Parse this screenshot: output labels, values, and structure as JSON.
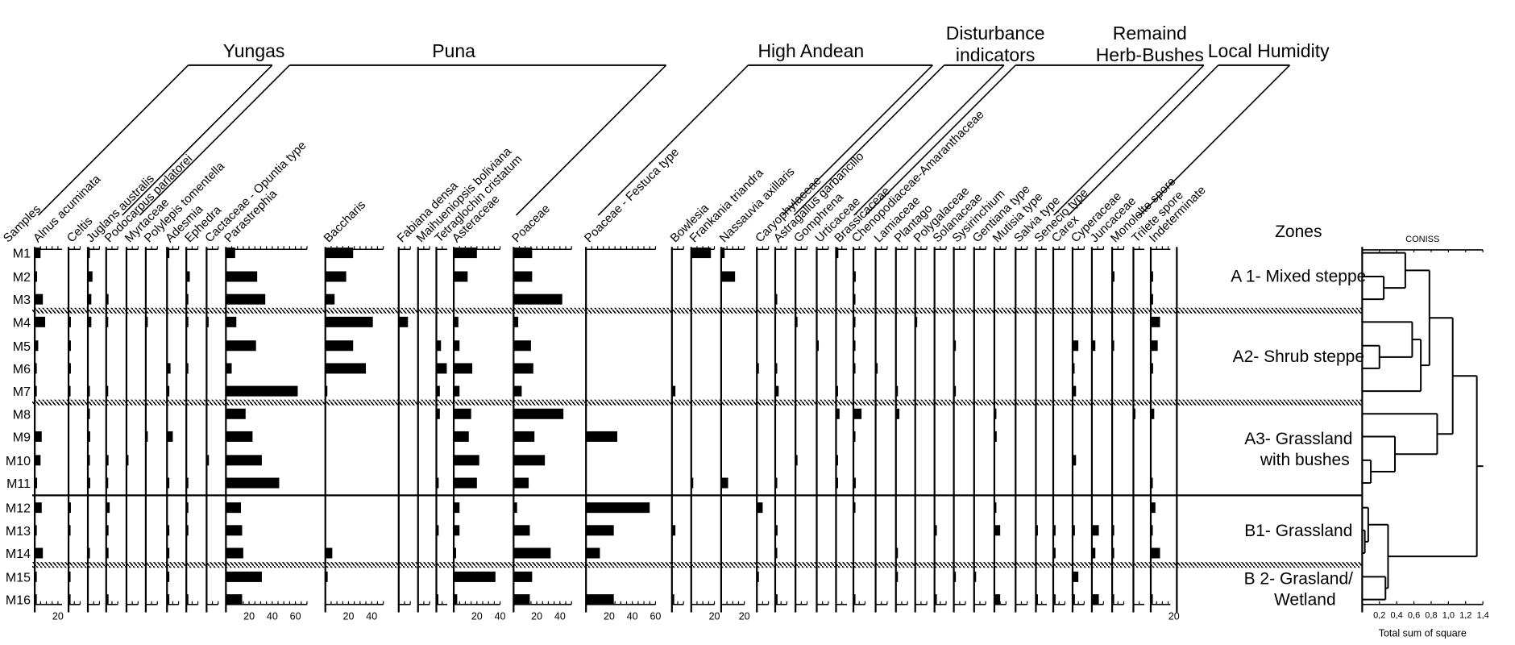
{
  "chart_data": {
    "type": "pollen-diagram",
    "title": "",
    "samples_label": "Samples",
    "samples": [
      "M1",
      "M2",
      "M3",
      "M4",
      "M5",
      "M6",
      "M7",
      "M8",
      "M9",
      "M10",
      "M11",
      "M12",
      "M13",
      "M14",
      "M15",
      "M16"
    ],
    "units": "%",
    "groups": [
      {
        "name": "Yungas",
        "taxa": [
          "Alnus acuminata",
          "Celtis",
          "Juglans australis",
          "Podocarpus parlatorei",
          "Myrtaceae",
          "Polylepis tomentella"
        ]
      },
      {
        "name": "Puna",
        "taxa": [
          "Adesmia",
          "Ephedra",
          "Cactaceae - Opuntia type",
          "Parastrephia",
          "Baccharis",
          "Fabiana densa",
          "Maihueniopsis boliviana",
          "Tetraglochin cristatum",
          "Asteraceae"
        ]
      },
      {
        "name": "High Andean",
        "taxa": [
          "Poaceae",
          "Poaceae - Festuca type",
          "Bowlesia",
          "Frankania triandra",
          "Nassauvia axillaris",
          "Caryophylaceae"
        ]
      },
      {
        "name": "Disturbance indicators",
        "taxa": [
          "Astragallus garbancillo",
          "Gomphrena",
          "Urticaceae",
          "Brassicaceae",
          "Chenopodiaceae-Amaranthaceae"
        ]
      },
      {
        "name": "Remaind Herb-Bushes",
        "taxa": [
          "Lamiaceae",
          "Plantago",
          "Polygalaceae",
          "Solanaceae",
          "Sysirinchium",
          "Gentiana type",
          "Mutisia type",
          "Salvia type",
          "Senecio type"
        ]
      },
      {
        "name": "Local Humidity",
        "taxa": [
          "Carex",
          "Cyperaceae",
          "Juncaceae",
          "Monolelte spore",
          "Trilete spore",
          "Indeterminate"
        ]
      }
    ],
    "series": [
      {
        "name": "Alnus acuminata",
        "scale_max": 30,
        "ticks": [
          "20"
        ],
        "values": [
          5,
          2,
          7,
          9,
          3,
          1,
          1,
          0,
          6,
          5,
          2,
          6,
          1,
          7,
          1,
          1
        ]
      },
      {
        "name": "Celtis",
        "scale_max": 10,
        "ticks": [],
        "values": [
          0,
          0,
          0,
          2,
          2,
          2,
          1,
          0,
          0,
          0,
          0,
          2,
          1,
          0,
          1,
          1
        ]
      },
      {
        "name": "Juglans australis",
        "scale_max": 10,
        "ticks": [],
        "values": [
          1,
          4,
          3,
          3,
          0,
          0,
          1,
          1,
          2,
          1,
          2,
          0,
          0,
          1,
          0,
          0
        ]
      },
      {
        "name": "Podocarpus parlatorei",
        "scale_max": 10,
        "ticks": [],
        "values": [
          0,
          0,
          2,
          1,
          0,
          0,
          1,
          0,
          0,
          2,
          1,
          3,
          2,
          2,
          0,
          2
        ]
      },
      {
        "name": "Myrtaceae",
        "scale_max": 10,
        "ticks": [],
        "values": [
          0,
          0,
          0,
          0,
          0,
          0,
          0,
          0,
          0,
          1,
          0,
          0,
          0,
          0,
          0,
          0
        ]
      },
      {
        "name": "Polylepis tomentella",
        "scale_max": 10,
        "ticks": [],
        "values": [
          0,
          0,
          0,
          1,
          0,
          0,
          0,
          0,
          1,
          0,
          0,
          0,
          0,
          0,
          0,
          0
        ]
      },
      {
        "name": "Adesmia",
        "scale_max": 10,
        "ticks": [],
        "values": [
          2,
          0,
          0,
          0,
          0,
          3,
          2,
          0,
          5,
          0,
          2,
          0,
          2,
          2,
          2,
          2
        ]
      },
      {
        "name": "Ephedra",
        "scale_max": 10,
        "ticks": [],
        "values": [
          0,
          3,
          1,
          1,
          0,
          1,
          0,
          0,
          0,
          0,
          1,
          1,
          1,
          0,
          0,
          1
        ]
      },
      {
        "name": "Cactaceae - Opuntia type",
        "scale_max": 10,
        "ticks": [],
        "values": [
          0,
          0,
          0,
          1,
          0,
          0,
          0,
          0,
          0,
          2,
          0,
          0,
          0,
          0,
          0,
          0
        ]
      },
      {
        "name": "Parastrephia",
        "scale_max": 70,
        "ticks": [
          "20",
          "40",
          "60"
        ],
        "values": [
          8,
          27,
          34,
          9,
          26,
          5,
          62,
          17,
          23,
          31,
          46,
          13,
          14,
          15,
          31,
          14
        ]
      },
      {
        "name": "Baccharis",
        "scale_max": 50,
        "ticks": [
          "20",
          "40"
        ],
        "values": [
          24,
          18,
          8,
          41,
          24,
          35,
          1,
          0,
          0,
          0,
          0,
          0,
          0,
          6,
          2,
          0
        ]
      },
      {
        "name": "Fabiana densa",
        "scale_max": 10,
        "ticks": [],
        "values": [
          0,
          0,
          0,
          8,
          0,
          0,
          0,
          0,
          0,
          0,
          0,
          0,
          0,
          0,
          0,
          0
        ]
      },
      {
        "name": "Maihueniopsis boliviana",
        "scale_max": 10,
        "ticks": [],
        "values": [
          0,
          0,
          0,
          0,
          0,
          0,
          0,
          0,
          0,
          0,
          0,
          0,
          0,
          0,
          0,
          0
        ]
      },
      {
        "name": "Tetraglochin cristatum",
        "scale_max": 10,
        "ticks": [],
        "values": [
          0,
          0,
          0,
          0,
          4,
          9,
          3,
          3,
          0,
          0,
          2,
          0,
          2,
          0,
          0,
          1
        ]
      },
      {
        "name": "Asteraceae",
        "scale_max": 40,
        "ticks": [
          "20",
          "40"
        ],
        "values": [
          20,
          12,
          0,
          4,
          5,
          16,
          5,
          15,
          13,
          22,
          20,
          5,
          5,
          2,
          36,
          3
        ]
      },
      {
        "name": "Poaceae",
        "scale_max": 50,
        "ticks": [
          "20",
          "40"
        ],
        "values": [
          16,
          16,
          42,
          4,
          15,
          17,
          7,
          43,
          18,
          27,
          13,
          3,
          14,
          32,
          16,
          14
        ]
      },
      {
        "name": "Poaceae - Festuca type",
        "scale_max": 60,
        "ticks": [
          "20",
          "40",
          "60"
        ],
        "values": [
          0,
          0,
          0,
          0,
          0,
          0,
          0,
          0,
          27,
          0,
          0,
          55,
          24,
          12,
          0,
          24
        ]
      },
      {
        "name": "Bowlesia",
        "scale_max": 10,
        "ticks": [],
        "values": [
          0,
          0,
          0,
          0,
          0,
          0,
          3,
          0,
          0,
          0,
          0,
          0,
          3,
          0,
          0,
          2
        ]
      },
      {
        "name": "Frankania triandra",
        "scale_max": 20,
        "ticks": [
          "20"
        ],
        "values": [
          17,
          0,
          0,
          0,
          0,
          0,
          0,
          0,
          0,
          0,
          1,
          0,
          0,
          0,
          0,
          0
        ]
      },
      {
        "name": "Nassauvia axillaris",
        "scale_max": 20,
        "ticks": [
          "20"
        ],
        "values": [
          3,
          12,
          0,
          0,
          0,
          0,
          0,
          0,
          0,
          0,
          6,
          0,
          0,
          0,
          0,
          0
        ]
      },
      {
        "name": "Caryophylaceae",
        "scale_max": 10,
        "ticks": [],
        "values": [
          0,
          0,
          0,
          0,
          0,
          1,
          0,
          0,
          0,
          0,
          0,
          5,
          0,
          0,
          1,
          0
        ]
      },
      {
        "name": "Astragallus garbancillo",
        "scale_max": 10,
        "ticks": [],
        "values": [
          0,
          0,
          1,
          0,
          0,
          1,
          3,
          0,
          0,
          0,
          1,
          0,
          2,
          1,
          0,
          2
        ]
      },
      {
        "name": "Gomphrena",
        "scale_max": 10,
        "ticks": [],
        "values": [
          0,
          0,
          0,
          1,
          0,
          0,
          0,
          0,
          0,
          1,
          0,
          0,
          0,
          0,
          0,
          0
        ]
      },
      {
        "name": "Urticaceae",
        "scale_max": 10,
        "ticks": [],
        "values": [
          0,
          0,
          0,
          0,
          1,
          0,
          0,
          0,
          0,
          0,
          0,
          0,
          0,
          0,
          0,
          0
        ]
      },
      {
        "name": "Brassicaceae",
        "scale_max": 10,
        "ticks": [],
        "values": [
          2,
          0,
          0,
          0,
          0,
          0,
          1,
          3,
          0,
          1,
          1,
          0,
          0,
          0,
          0,
          0
        ]
      },
      {
        "name": "Chenopodiaceae-Amaranthaceae",
        "scale_max": 10,
        "ticks": [],
        "values": [
          0,
          2,
          1,
          1,
          1,
          1,
          0,
          7,
          1,
          0,
          2,
          1,
          0,
          0,
          0,
          1
        ]
      },
      {
        "name": "Lamiaceae",
        "scale_max": 10,
        "ticks": [],
        "values": [
          0,
          0,
          0,
          0,
          0,
          1,
          0,
          0,
          0,
          0,
          0,
          0,
          0,
          0,
          0,
          0
        ]
      },
      {
        "name": "Plantago",
        "scale_max": 10,
        "ticks": [],
        "values": [
          0,
          0,
          0,
          0,
          0,
          0,
          1,
          3,
          0,
          0,
          0,
          0,
          0,
          1,
          1,
          0
        ]
      },
      {
        "name": "Polygalaceae",
        "scale_max": 10,
        "ticks": [],
        "values": [
          0,
          0,
          0,
          1,
          0,
          0,
          0,
          0,
          0,
          0,
          0,
          0,
          0,
          0,
          0,
          0
        ]
      },
      {
        "name": "Solanaceae",
        "scale_max": 10,
        "ticks": [],
        "values": [
          0,
          0,
          0,
          0,
          0,
          0,
          0,
          0,
          0,
          0,
          0,
          0,
          2,
          0,
          0,
          2
        ]
      },
      {
        "name": "Sysirinchium",
        "scale_max": 10,
        "ticks": [],
        "values": [
          0,
          0,
          0,
          0,
          1,
          0,
          1,
          0,
          0,
          0,
          0,
          0,
          0,
          0,
          1,
          0
        ]
      },
      {
        "name": "Gentiana type",
        "scale_max": 10,
        "ticks": [],
        "values": [
          0,
          0,
          0,
          0,
          0,
          0,
          0,
          0,
          0,
          0,
          0,
          0,
          0,
          0,
          1,
          0
        ]
      },
      {
        "name": "Mutisia type",
        "scale_max": 10,
        "ticks": [],
        "values": [
          0,
          0,
          0,
          0,
          0,
          0,
          0,
          1,
          2,
          0,
          0,
          1,
          5,
          0,
          0,
          5
        ]
      },
      {
        "name": "Salvia type",
        "scale_max": 10,
        "ticks": [],
        "values": [
          0,
          0,
          0,
          0,
          0,
          0,
          0,
          0,
          0,
          0,
          0,
          0,
          0,
          0,
          0,
          0
        ]
      },
      {
        "name": "Senecio type",
        "scale_max": 10,
        "ticks": [],
        "values": [
          0,
          0,
          0,
          0,
          0,
          0,
          0,
          0,
          0,
          0,
          0,
          0,
          1,
          0,
          0,
          1
        ]
      },
      {
        "name": "Carex",
        "scale_max": 10,
        "ticks": [],
        "values": [
          0,
          0,
          0,
          0,
          0,
          0,
          0,
          0,
          0,
          0,
          0,
          0,
          2,
          2,
          0,
          2
        ]
      },
      {
        "name": "Cyperaceae",
        "scale_max": 10,
        "ticks": [],
        "values": [
          0,
          0,
          0,
          0,
          5,
          1,
          3,
          0,
          0,
          3,
          0,
          0,
          2,
          0,
          5,
          2
        ]
      },
      {
        "name": "Juncaceae",
        "scale_max": 10,
        "ticks": [],
        "values": [
          0,
          0,
          0,
          0,
          3,
          0,
          0,
          0,
          0,
          0,
          0,
          0,
          6,
          3,
          0,
          6
        ]
      },
      {
        "name": "Monolelte spore",
        "scale_max": 10,
        "ticks": [],
        "values": [
          0,
          2,
          0,
          0,
          1,
          0,
          0,
          0,
          0,
          0,
          0,
          0,
          1,
          1,
          0,
          1
        ]
      },
      {
        "name": "Trilete spore",
        "scale_max": 10,
        "ticks": [],
        "values": [
          0,
          0,
          0,
          0,
          0,
          0,
          0,
          1,
          0,
          0,
          0,
          0,
          0,
          0,
          0,
          0
        ]
      },
      {
        "name": "Indeterminate",
        "scale_max": 25,
        "ticks": [
          "20"
        ],
        "values": [
          0,
          2,
          2,
          8,
          6,
          2,
          0,
          3,
          0,
          0,
          1,
          4,
          1,
          8,
          0,
          1
        ]
      }
    ],
    "zone_boundaries": [
      {
        "after": "M3",
        "style": "hatched"
      },
      {
        "after": "M7",
        "style": "hatched"
      },
      {
        "after": "M11",
        "style": "solid"
      },
      {
        "after": "M14",
        "style": "hatched"
      }
    ],
    "zones_title": "Zones",
    "zones": [
      {
        "label": "A 1- Mixed steppe",
        "samples": [
          "M1",
          "M2",
          "M3"
        ]
      },
      {
        "label": "A2- Shrub steppe",
        "samples": [
          "M4",
          "M5",
          "M6",
          "M7"
        ]
      },
      {
        "label_lines": [
          "A3- Grassland",
          "with bushes"
        ],
        "samples": [
          "M8",
          "M9",
          "M10",
          "M11"
        ]
      },
      {
        "label": "B1- Grassland",
        "samples": [
          "M12",
          "M13",
          "M14"
        ]
      },
      {
        "label_lines": [
          "B 2- Grasland/",
          "Wetland"
        ],
        "samples": [
          "M15",
          "M16"
        ]
      }
    ],
    "coniss": {
      "title": "CONISS",
      "xlabel": "Total sum of square",
      "xlim": [
        0,
        1.4
      ],
      "xticks": [
        "0,2",
        "0,4",
        "0,6",
        "0,8",
        "1,0",
        "1,2",
        "1,4"
      ],
      "tree": [
        {
          "id": "a",
          "join": [
            "M2",
            "M3"
          ],
          "height": 0.25
        },
        {
          "id": "b",
          "join": [
            "M1",
            "a"
          ],
          "height": 0.5
        },
        {
          "id": "c",
          "join": [
            "M5",
            "M6"
          ],
          "height": 0.2
        },
        {
          "id": "d",
          "join": [
            "M4",
            "c"
          ],
          "height": 0.58
        },
        {
          "id": "e",
          "join": [
            "d",
            "M7"
          ],
          "height": 0.68
        },
        {
          "id": "f",
          "join": [
            "b",
            "e"
          ],
          "height": 0.78
        },
        {
          "id": "g",
          "join": [
            "M10",
            "M11"
          ],
          "height": 0.1
        },
        {
          "id": "h",
          "join": [
            "M9",
            "g"
          ],
          "height": 0.38
        },
        {
          "id": "i",
          "join": [
            "M8",
            "h"
          ],
          "height": 0.87
        },
        {
          "id": "j",
          "join": [
            "f",
            "i"
          ],
          "height": 1.05
        },
        {
          "id": "k",
          "join": [
            "M13",
            "M14"
          ],
          "height": 0.03
        },
        {
          "id": "l",
          "join": [
            "M12",
            "k"
          ],
          "height": 0.07
        },
        {
          "id": "m",
          "join": [
            "M15",
            "M16"
          ],
          "height": 0.27
        },
        {
          "id": "n",
          "join": [
            "l",
            "m"
          ],
          "height": 0.3
        },
        {
          "id": "o",
          "join": [
            "j",
            "n"
          ],
          "height": 1.33
        }
      ]
    }
  }
}
